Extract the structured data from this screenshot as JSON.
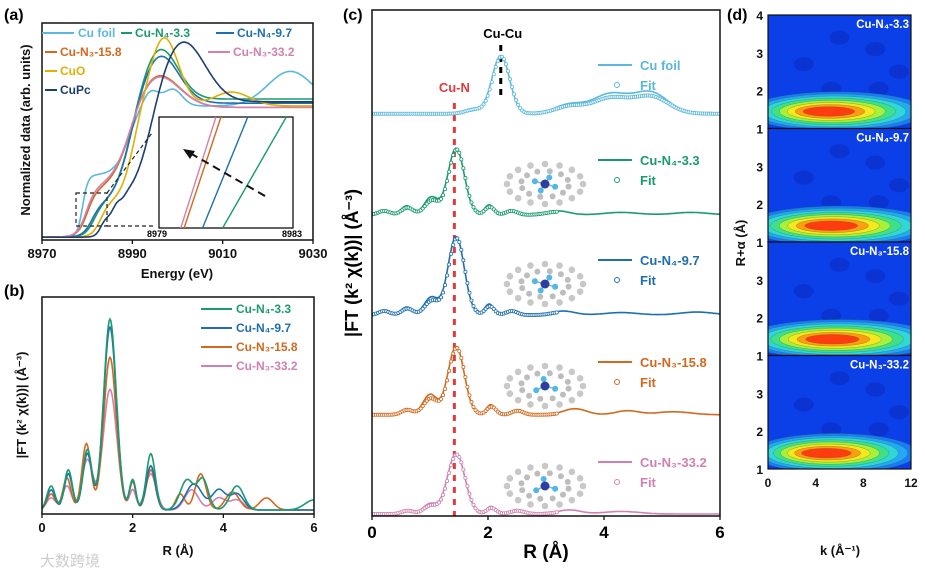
{
  "watermark": "大数跨境",
  "chart_data": [
    {
      "panel": "(a)",
      "type": "line",
      "xlabel": "Energy (eV)",
      "ylabel": "Normalized data (arb. units)",
      "xlim": [
        8970,
        9030
      ],
      "ylim": [
        -0.02,
        1.55
      ],
      "xticks": [
        "8970",
        "8990",
        "9010",
        "9030"
      ],
      "legend_placement": "top",
      "series": [
        {
          "name": "Cu foil",
          "color": "#5bb8dc",
          "steps": [
            [
              8979,
              0.45,
              0.6
            ],
            [
              8989,
              0.5,
              1.5
            ]
          ],
          "peaks": [
            [
              8994,
              0.12,
              1.8
            ],
            [
              8999,
              0.12,
              2.0
            ],
            [
              9025,
              0.25,
              5
            ]
          ]
        },
        {
          "name": "Cu-N₄-3.3",
          "color": "#1a9a70",
          "steps": [
            [
              8981.5,
              0.22,
              1
            ],
            [
              8989,
              0.78,
              2
            ]
          ],
          "peaks": [
            [
              8996,
              0.38,
              4
            ]
          ]
        },
        {
          "name": "Cu-N₄-9.7",
          "color": "#1f6fae",
          "steps": [
            [
              8981,
              0.22,
              1
            ],
            [
              8989,
              0.75,
              2
            ]
          ],
          "peaks": [
            [
              8996,
              0.36,
              4.2
            ]
          ]
        },
        {
          "name": "Cu-N₃-15.8",
          "color": "#d2691e",
          "steps": [
            [
              8980,
              0.32,
              1
            ],
            [
              8989,
              0.62,
              2.5
            ]
          ],
          "peaks": [
            [
              8995,
              0.27,
              5
            ]
          ]
        },
        {
          "name": "Cu-N₃-33.2",
          "color": "#d181b0",
          "steps": [
            [
              8979.8,
              0.34,
              1
            ],
            [
              8989,
              0.6,
              2.5
            ]
          ],
          "peaks": [
            [
              8995,
              0.26,
              5
            ]
          ]
        },
        {
          "name": "CuO",
          "color": "#e0b000",
          "steps": [
            [
              8983,
              0.25,
              1
            ],
            [
              8990,
              0.7,
              1.5
            ]
          ],
          "peaks": [
            [
              8997,
              0.5,
              3.2
            ],
            [
              9012,
              0.1,
              4
            ]
          ]
        },
        {
          "name": "CuPc",
          "color": "#1d3f70",
          "steps": [
            [
              8983,
              0.14,
              0.6
            ],
            [
              8986,
              0.14,
              0.6
            ],
            [
              8994,
              0.7,
              2
            ]
          ],
          "peaks": [
            [
              9001,
              0.45,
              5
            ],
            [
              8987.5,
              -0.06,
              0.8
            ]
          ]
        }
      ],
      "inset": {
        "xlim": [
          8979,
          8983
        ],
        "xticks": [
          "8979",
          "8983"
        ],
        "lines": [
          {
            "series": "Cu-N₃-33.2",
            "color": "#d181b0",
            "E": [
              8979.65,
              8980.7
            ]
          },
          {
            "series": "Cu-N₃-15.8",
            "color": "#d2691e",
            "E": [
              8979.75,
              8980.85
            ]
          },
          {
            "series": "Cu-N₄-9.7",
            "color": "#1f6fae",
            "E": [
              8980.3,
              8981.65
            ]
          },
          {
            "series": "Cu-N₄-3.3",
            "color": "#1a9a70",
            "E": [
              8980.9,
              8982.8
            ]
          }
        ]
      }
    },
    {
      "panel": "(b)",
      "type": "line",
      "xlabel": "R (Å)",
      "ylabel": "|FT (k² χ(k))| (Å⁻³)",
      "xlim": [
        0,
        6
      ],
      "ylim": [
        0,
        1.08
      ],
      "xticks": [
        "0",
        "2",
        "4",
        "6"
      ],
      "legend_placement": "top-right",
      "series": [
        {
          "name": "Cu-N₄-3.3",
          "color": "#1a9a70",
          "peaks": [
            [
              0.2,
              0.12,
              0.09
            ],
            [
              0.58,
              0.2,
              0.09
            ],
            [
              1.0,
              0.3,
              0.1
            ],
            [
              1.5,
              0.95,
              0.14
            ],
            [
              2.0,
              0.15,
              0.07
            ],
            [
              2.4,
              0.28,
              0.1
            ],
            [
              3.2,
              0.15,
              0.15
            ],
            [
              3.55,
              0.15,
              0.12
            ],
            [
              4.3,
              0.12,
              0.15
            ],
            [
              6.0,
              0.05,
              0.2
            ]
          ]
        },
        {
          "name": "Cu-N₄-9.7",
          "color": "#1f6fae",
          "peaks": [
            [
              0.2,
              0.1,
              0.09
            ],
            [
              0.58,
              0.18,
              0.09
            ],
            [
              1.0,
              0.28,
              0.1
            ],
            [
              1.5,
              0.91,
              0.14
            ],
            [
              2.0,
              0.15,
              0.07
            ],
            [
              2.4,
              0.22,
              0.1
            ],
            [
              3.35,
              0.13,
              0.18
            ],
            [
              3.9,
              0.1,
              0.15
            ],
            [
              4.3,
              0.08,
              0.15
            ]
          ]
        },
        {
          "name": "Cu-N₃-15.8",
          "color": "#d2691e",
          "peaks": [
            [
              0.2,
              0.08,
              0.09
            ],
            [
              0.55,
              0.16,
              0.09
            ],
            [
              0.98,
              0.33,
              0.1
            ],
            [
              1.5,
              0.76,
              0.14
            ],
            [
              2.0,
              0.14,
              0.07
            ],
            [
              2.4,
              0.2,
              0.1
            ],
            [
              3.05,
              0.08,
              0.1
            ],
            [
              3.5,
              0.18,
              0.12
            ],
            [
              4.2,
              0.09,
              0.15
            ],
            [
              4.95,
              0.06,
              0.15
            ]
          ]
        },
        {
          "name": "Cu-N₃-33.2",
          "color": "#d181b0",
          "peaks": [
            [
              0.2,
              0.06,
              0.1
            ],
            [
              0.55,
              0.12,
              0.1
            ],
            [
              1.0,
              0.25,
              0.12
            ],
            [
              1.5,
              0.6,
              0.15
            ],
            [
              2.0,
              0.1,
              0.07
            ],
            [
              2.4,
              0.18,
              0.12
            ],
            [
              3.3,
              0.1,
              0.15
            ],
            [
              3.9,
              0.06,
              0.15
            ],
            [
              4.3,
              0.05,
              0.15
            ]
          ]
        }
      ]
    },
    {
      "panel": "(c)",
      "type": "line",
      "xlabel": "R (Å)",
      "ylabel": "|FT (k² χ(k))| (Å⁻³)",
      "xlim": [
        0,
        6
      ],
      "ylim": [
        0,
        10
      ],
      "xticks": [
        "0",
        "2",
        "4",
        "6"
      ],
      "annotations": [
        {
          "text": "Cu-N",
          "R": 1.42,
          "color": "#e23b3b"
        },
        {
          "text": "Cu-Cu",
          "R": 2.22,
          "color": "#000000"
        }
      ],
      "fit_label": "Fit",
      "series": [
        {
          "name": "Cu foil",
          "color": "#5bb8dc",
          "offset": 7.95,
          "fit_range": [
            0,
            6
          ],
          "peaks": [
            [
              1.75,
              0.1,
              0.15
            ],
            [
              2.22,
              1.15,
              0.15
            ],
            [
              3.4,
              0.18,
              0.25
            ],
            [
              4.1,
              0.38,
              0.3
            ],
            [
              4.8,
              0.42,
              0.3
            ]
          ]
        },
        {
          "name": "Cu-N₄-3.3",
          "color": "#1a9a70",
          "offset": 5.95,
          "fit_range": [
            0,
            3.2
          ],
          "peaks": [
            [
              0.2,
              0.1,
              0.1
            ],
            [
              0.6,
              0.18,
              0.1
            ],
            [
              1.02,
              0.35,
              0.12
            ],
            [
              1.45,
              1.32,
              0.14
            ],
            [
              2.02,
              0.2,
              0.08
            ],
            [
              2.4,
              0.1,
              0.1
            ],
            [
              3.2,
              0.08,
              0.2
            ],
            [
              4.3,
              0.05,
              0.3
            ],
            [
              5.5,
              0.05,
              0.3
            ]
          ]
        },
        {
          "name": "Cu-N₄-9.7",
          "color": "#1f6fae",
          "offset": 3.97,
          "fit_range": [
            0,
            3.2
          ],
          "peaks": [
            [
              0.2,
              0.1,
              0.1
            ],
            [
              0.6,
              0.16,
              0.1
            ],
            [
              1.02,
              0.35,
              0.12
            ],
            [
              1.45,
              1.55,
              0.14
            ],
            [
              2.02,
              0.22,
              0.08
            ],
            [
              2.4,
              0.1,
              0.1
            ],
            [
              3.3,
              0.08,
              0.2
            ],
            [
              4.3,
              0.05,
              0.3
            ],
            [
              5.6,
              0.06,
              0.3
            ]
          ]
        },
        {
          "name": "Cu-N₃-15.8",
          "color": "#d2691e",
          "offset": 2.0,
          "fit_range": [
            0,
            3.2
          ],
          "peaks": [
            [
              0.6,
              0.12,
              0.1
            ],
            [
              1.0,
              0.4,
              0.12
            ],
            [
              1.45,
              1.35,
              0.14
            ],
            [
              2.05,
              0.2,
              0.08
            ],
            [
              2.5,
              0.1,
              0.1
            ],
            [
              3.5,
              0.12,
              0.2
            ],
            [
              4.4,
              0.08,
              0.2
            ],
            [
              5.2,
              0.06,
              0.3
            ]
          ]
        },
        {
          "name": "Cu-N₃-33.2",
          "color": "#d181b0",
          "offset": 0.04,
          "fit_range": [
            0,
            3.2
          ],
          "peaks": [
            [
              0.6,
              0.08,
              0.1
            ],
            [
              1.0,
              0.2,
              0.12
            ],
            [
              1.45,
              1.2,
              0.15
            ],
            [
              2.05,
              0.15,
              0.08
            ],
            [
              2.5,
              0.08,
              0.12
            ],
            [
              3.4,
              0.08,
              0.2
            ],
            [
              4.3,
              0.05,
              0.3
            ]
          ]
        }
      ]
    },
    {
      "panel": "(d)",
      "type": "heatmap",
      "xlabel": "k (Å⁻¹)",
      "ylabel": "R+α (Å)",
      "xlim": [
        0,
        12
      ],
      "ylim": [
        1,
        4
      ],
      "xticks": [
        "0",
        "4",
        "8",
        "12"
      ],
      "yticks": [
        "1",
        "2",
        "3",
        "4"
      ],
      "maps": [
        {
          "name": "Cu-N₄-3.3",
          "hotspot": {
            "k": 5.0,
            "R": 1.45
          },
          "spread_k": 4.2
        },
        {
          "name": "Cu-N₄-9.7",
          "hotspot": {
            "k": 5.2,
            "R": 1.43
          },
          "spread_k": 4.5
        },
        {
          "name": "Cu-N₃-15.8",
          "hotspot": {
            "k": 5.3,
            "R": 1.43
          },
          "spread_k": 4.6
        },
        {
          "name": "Cu-N₃-33.2",
          "hotspot": {
            "k": 4.8,
            "R": 1.42
          },
          "spread_k": 3.8
        }
      ]
    }
  ]
}
